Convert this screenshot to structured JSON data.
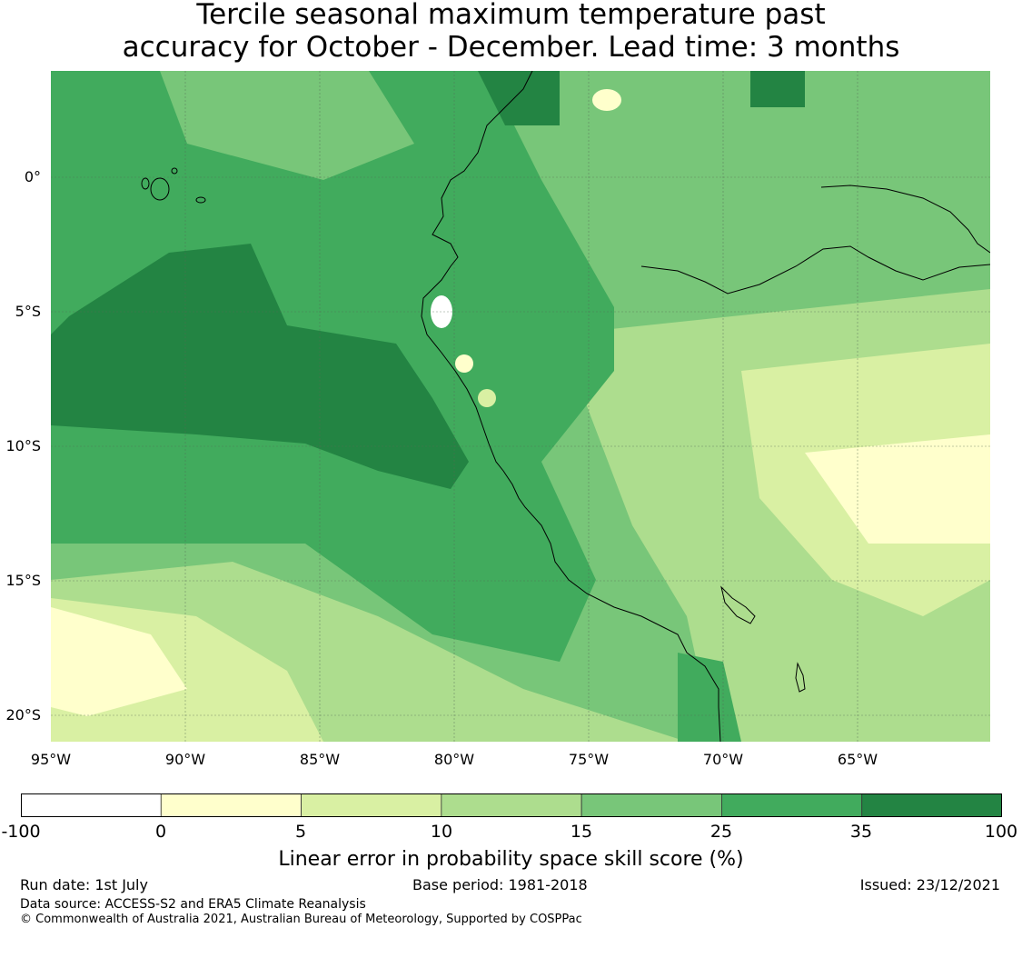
{
  "title_line1": "Tercile seasonal maximum temperature past",
  "title_line2": "accuracy for October - December. Lead time: 3 months",
  "lat_ticks": [
    "0°",
    "5°S",
    "10°S",
    "15°S",
    "20°S"
  ],
  "lon_ticks": [
    "95°W",
    "90°W",
    "85°W",
    "80°W",
    "75°W",
    "70°W",
    "65°W"
  ],
  "colorbar": {
    "labels": [
      "-100",
      "0",
      "5",
      "10",
      "15",
      "25",
      "35",
      "100"
    ],
    "colors": [
      "#ffffff",
      "#ffffcc",
      "#d9f0a3",
      "#addd8e",
      "#78c679",
      "#41ab5d",
      "#238443"
    ],
    "title": "Linear error in probability space skill score (%)"
  },
  "footer": {
    "run_date": "Run date: 1st July",
    "base_period": "Base period: 1981-2018",
    "issued": "Issued: 23/12/2021",
    "data_source": "Data source: ACCESS-S2 and ERA5 Climate Reanalysis",
    "copyright": "© Commonwealth of Australia 2021, Australian Bureau of Meteorology, Supported by COSPPac"
  }
}
